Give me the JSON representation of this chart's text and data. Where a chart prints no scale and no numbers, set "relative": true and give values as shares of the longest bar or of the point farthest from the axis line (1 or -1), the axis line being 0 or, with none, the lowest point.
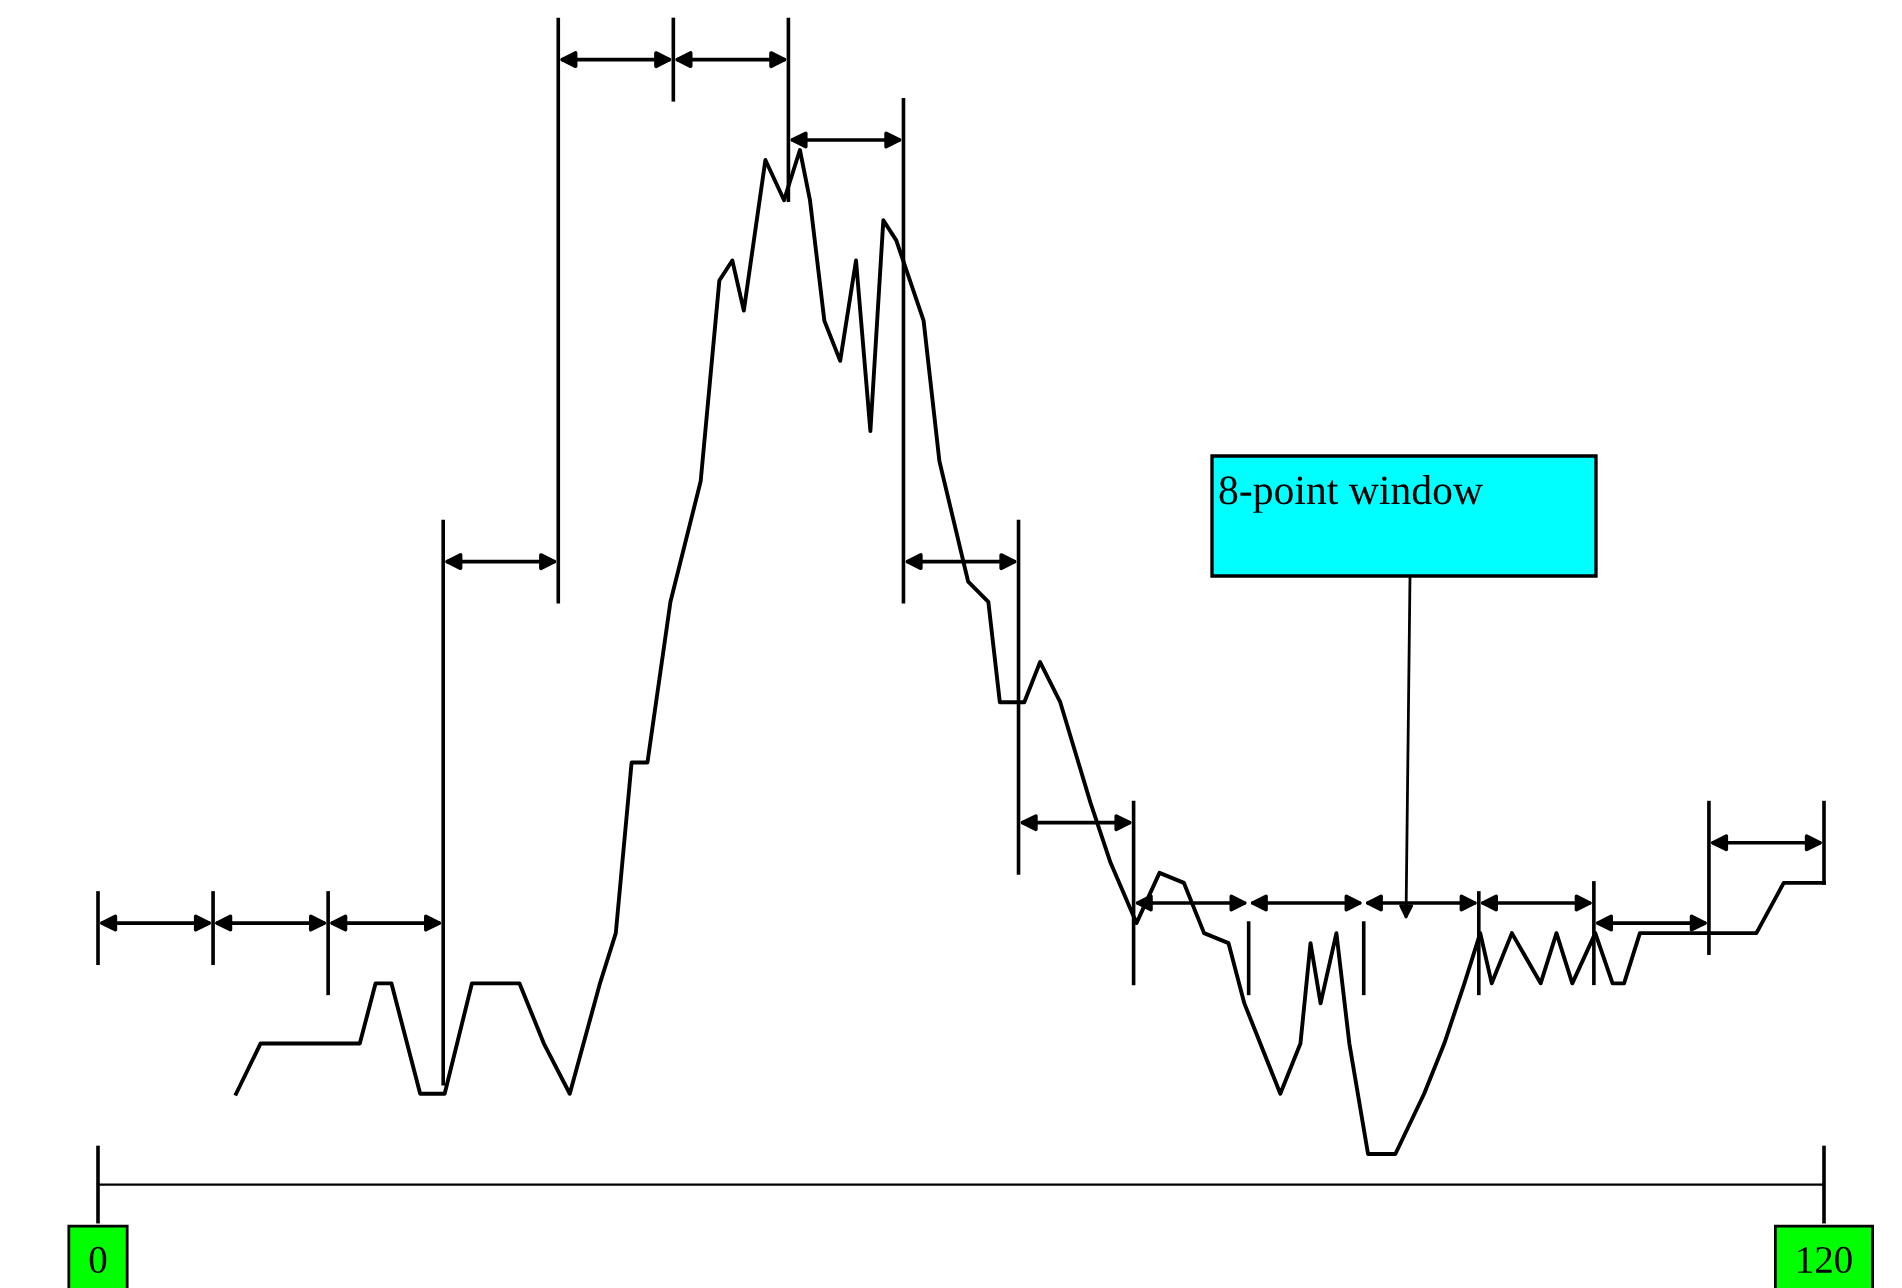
{
  "chart_data": {
    "type": "line",
    "relative": true,
    "color": "#000000",
    "x": [
      9.6,
      11.3,
      18.2,
      19.3,
      20.4,
      22.4,
      24.1,
      26.0,
      29.3,
      31.0,
      32.8,
      34.9,
      36.0,
      37.1,
      38.2,
      39.8,
      41.9,
      43.2,
      44.1,
      44.9,
      46.4,
      47.7,
      48.8,
      49.5,
      50.5,
      51.6,
      52.7,
      53.7,
      54.6,
      55.5,
      57.4,
      58.5,
      60.5,
      61.9,
      62.7,
      64.4,
      65.5,
      66.9,
      69.0,
      70.4,
      72.2,
      73.8,
      75.5,
      76.9,
      78.6,
      79.7,
      82.2,
      83.6,
      84.3,
      85.0,
      86.1,
      87.0,
      88.3,
      90.2,
      92.2,
      93.6,
      95.0,
      96.1,
      96.9,
      98.3,
      100.3,
      101.4,
      102.5,
      104.1,
      105.3,
      106.1,
      107.2,
      115.3,
      117.2,
      120
    ],
    "values": [
      0.06,
      0.11,
      0.11,
      0.17,
      0.17,
      0.06,
      0.06,
      0.17,
      0.17,
      0.11,
      0.06,
      0.17,
      0.22,
      0.39,
      0.39,
      0.55,
      0.67,
      0.87,
      0.89,
      0.84,
      0.99,
      0.95,
      1,
      0.95,
      0.83,
      0.79,
      0.89,
      0.72,
      0.93,
      0.91,
      0.83,
      0.69,
      0.57,
      0.55,
      0.45,
      0.45,
      0.49,
      0.45,
      0.35,
      0.29,
      0.23,
      0.28,
      0.27,
      0.22,
      0.21,
      0.15,
      0.06,
      0.11,
      0.21,
      0.15,
      0.22,
      0.11,
      0,
      0,
      0.06,
      0.11,
      0.17,
      0.22,
      0.17,
      0.22,
      0.17,
      0.22,
      0.17,
      0.22,
      0.17,
      0.17,
      0.22,
      0.22,
      0.27,
      0.27
    ],
    "xlim": [
      0,
      120
    ],
    "xticks": [
      0,
      120
    ],
    "grid": false,
    "legend": false,
    "annotations": [
      "8-point window"
    ]
  }
}
